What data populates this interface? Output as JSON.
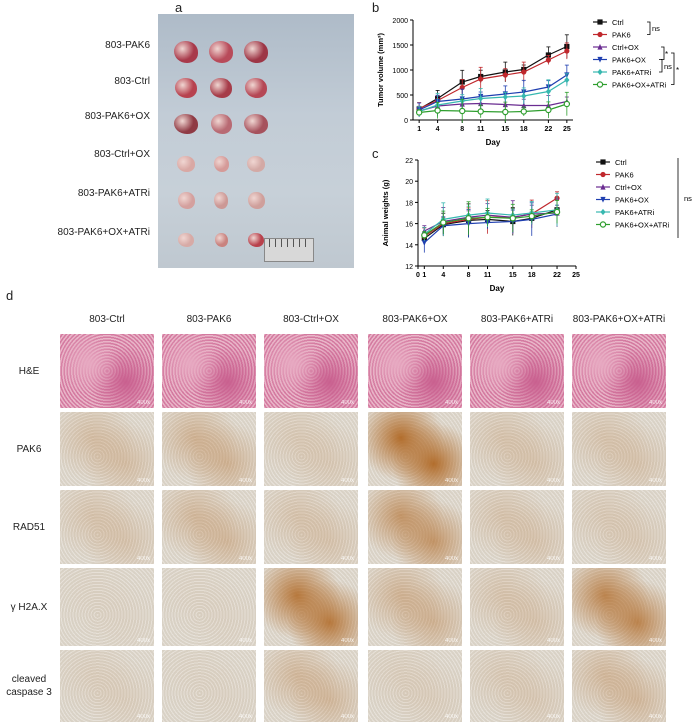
{
  "panels": {
    "a": "a",
    "b": "b",
    "c": "c",
    "d": "d"
  },
  "panel_a": {
    "rows": [
      "803-PAK6",
      "803-Ctrl",
      "803-PAK6+OX",
      "803-Ctrl+OX",
      "803-PAK6+ATRi",
      "803-PAK6+OX+ATRi"
    ]
  },
  "chart_data": [
    {
      "type": "line",
      "panel": "b",
      "xlabel": "Day",
      "ylabel": "Tumor volume (mm³)",
      "x": [
        1,
        4,
        8,
        11,
        15,
        18,
        22,
        25
      ],
      "ylim": [
        0,
        2000
      ],
      "yticks": [
        0,
        500,
        1000,
        1500,
        2000
      ],
      "series": [
        {
          "name": "Ctrl",
          "values": [
            220,
            430,
            760,
            870,
            960,
            1010,
            1300,
            1470
          ],
          "color": "#111111",
          "marker": "square"
        },
        {
          "name": "PAK6",
          "values": [
            230,
            390,
            650,
            820,
            900,
            960,
            1200,
            1380
          ],
          "color": "#c0282d",
          "marker": "circle"
        },
        {
          "name": "Ctrl+OX",
          "values": [
            180,
            280,
            320,
            330,
            310,
            290,
            290,
            370
          ],
          "color": "#6a2c91",
          "marker": "triangle"
        },
        {
          "name": "PAK6+OX",
          "values": [
            200,
            370,
            420,
            470,
            520,
            560,
            660,
            900
          ],
          "color": "#1f3fb0",
          "marker": "triangle-down"
        },
        {
          "name": "PAK6+ATRi",
          "values": [
            170,
            300,
            380,
            430,
            460,
            480,
            570,
            800
          ],
          "color": "#38b8b0",
          "marker": "diamond"
        },
        {
          "name": "PAK6+OX+ATRi",
          "values": [
            150,
            190,
            180,
            170,
            160,
            170,
            200,
            320
          ],
          "color": "#2e9e2e",
          "marker": "circle-open"
        }
      ],
      "annotations": [
        "ns",
        "*",
        "ns",
        "*"
      ]
    },
    {
      "type": "line",
      "panel": "c",
      "xlabel": "Day",
      "ylabel": "Animal weights (g)",
      "x": [
        1,
        4,
        8,
        11,
        15,
        18,
        22
      ],
      "xticks": [
        0,
        1,
        4,
        8,
        11,
        15,
        18,
        22,
        25
      ],
      "ylim": [
        12,
        22
      ],
      "yticks": [
        12,
        14,
        16,
        18,
        20,
        22
      ],
      "series": [
        {
          "name": "Ctrl",
          "values": [
            14.6,
            15.9,
            16.3,
            16.4,
            16.2,
            16.5,
            17.3
          ],
          "color": "#111111",
          "marker": "square"
        },
        {
          "name": "PAK6",
          "values": [
            14.8,
            16.0,
            16.4,
            16.6,
            16.6,
            16.9,
            18.4
          ],
          "color": "#c0282d",
          "marker": "circle"
        },
        {
          "name": "Ctrl+OX",
          "values": [
            15.3,
            16.2,
            16.6,
            16.8,
            16.6,
            16.9,
            17.0
          ],
          "color": "#6a2c91",
          "marker": "triangle"
        },
        {
          "name": "PAK6+OX",
          "values": [
            14.2,
            15.8,
            16.0,
            16.1,
            16.2,
            16.4,
            16.9
          ],
          "color": "#1f3fb0",
          "marker": "triangle-down"
        },
        {
          "name": "PAK6+ATRi",
          "values": [
            15.0,
            16.4,
            16.8,
            17.0,
            16.8,
            17.0,
            17.3
          ],
          "color": "#38b8b0",
          "marker": "diamond"
        },
        {
          "name": "PAK6+OX+ATRi",
          "values": [
            14.9,
            16.1,
            16.5,
            16.6,
            16.5,
            16.7,
            17.1
          ],
          "color": "#2e9e2e",
          "marker": "circle-open"
        }
      ],
      "annotations": [
        "ns"
      ]
    }
  ],
  "panel_d": {
    "columns": [
      "803-Ctrl",
      "803-PAK6",
      "803-Ctrl+OX",
      "803-PAK6+OX",
      "803-PAK6+ATRi",
      "803-PAK6+OX+ATRi"
    ],
    "rows": [
      "H&E",
      "PAK6",
      "RAD51",
      "γ H2A.X",
      "cleaved caspase 3"
    ],
    "magnification": "400x"
  }
}
